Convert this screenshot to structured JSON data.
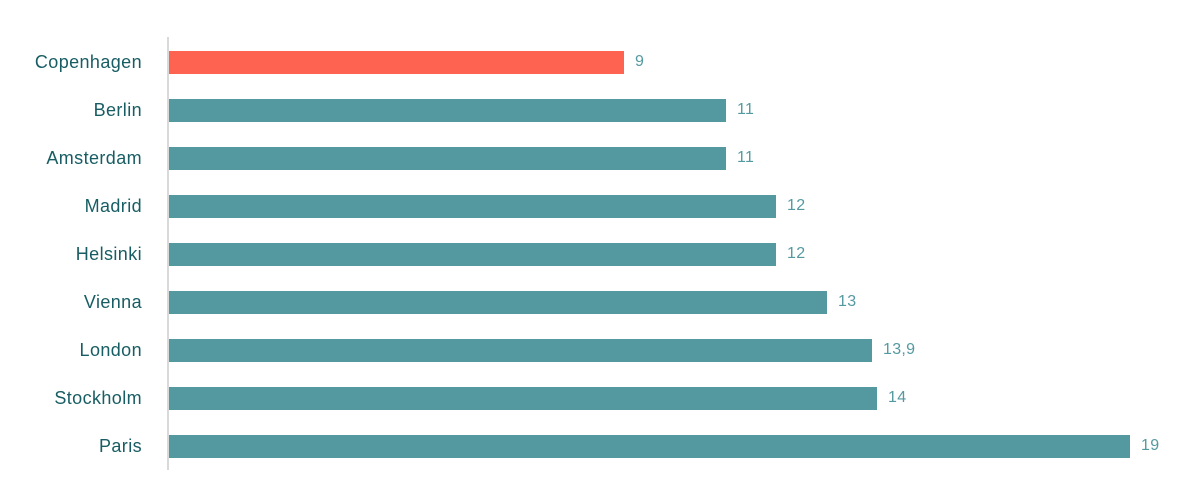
{
  "chart_data": {
    "type": "bar",
    "orientation": "horizontal",
    "title": "",
    "xlabel": "",
    "ylabel": "",
    "xlim": [
      0,
      20
    ],
    "grid": false,
    "legend": null,
    "categories": [
      "Copenhagen",
      "Berlin",
      "Amsterdam",
      "Madrid",
      "Helsinki",
      "Vienna",
      "London",
      "Stockholm",
      "Paris"
    ],
    "values": [
      9,
      11,
      11,
      12,
      12,
      13,
      13.9,
      14,
      19
    ],
    "value_labels": [
      "9",
      "11",
      "11",
      "12",
      "12",
      "13",
      "13,9",
      "14",
      "19"
    ],
    "highlight_index": 0,
    "colors": {
      "bar_default": "#5599a0",
      "bar_highlight": "#fd6350",
      "category_label": "#175d63",
      "value_label": "#5599a0",
      "axis_line": "#d9d9d9",
      "background": "#ffffff"
    }
  }
}
